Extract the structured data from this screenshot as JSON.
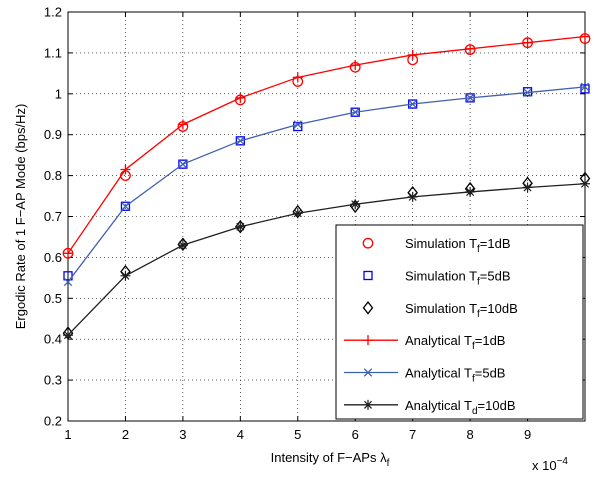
{
  "chart_data": {
    "type": "line",
    "xlabel": "Intensity of F−APs λ",
    "xlabel_sub": "f",
    "ylabel": "Ergodic Rate of 1 F−AP Mode (bps/Hz)",
    "x_multiplier_base": "x 10",
    "x_multiplier_exp": "−4",
    "xlim": [
      1,
      10
    ],
    "ylim": [
      0.2,
      1.2
    ],
    "x_ticks": [
      1,
      2,
      3,
      4,
      5,
      6,
      7,
      8,
      9
    ],
    "x_tick_labels": [
      "1",
      "2",
      "3",
      "4",
      "5",
      "6",
      "7",
      "8",
      "9"
    ],
    "y_ticks": [
      0.2,
      0.3,
      0.4,
      0.5,
      0.6,
      0.7,
      0.8,
      0.9,
      1.0,
      1.1,
      1.2
    ],
    "y_tick_labels": [
      "0.2",
      "0.3",
      "0.4",
      "0.5",
      "0.6",
      "0.7",
      "0.8",
      "0.9",
      "1",
      "1.1",
      "1.2"
    ],
    "grid": true,
    "legend_position": "bottom-right",
    "series": [
      {
        "name": "Simulation T",
        "name_sub": "f",
        "name_tail": "=1dB",
        "kind": "markers",
        "marker": "circle",
        "color": "#ff0000",
        "x": [
          1,
          2,
          3,
          4,
          5,
          6,
          7,
          8,
          9,
          10
        ],
        "y": [
          0.61,
          0.8,
          0.92,
          0.985,
          1.03,
          1.065,
          1.083,
          1.108,
          1.125,
          1.135
        ]
      },
      {
        "name": "Simulation T",
        "name_sub": "f",
        "name_tail": "=5dB",
        "kind": "markers",
        "marker": "square",
        "color": "#0000ff",
        "x": [
          1,
          2,
          3,
          4,
          5,
          6,
          7,
          8,
          9,
          10
        ],
        "y": [
          0.555,
          0.725,
          0.828,
          0.885,
          0.92,
          0.955,
          0.975,
          0.99,
          1.005,
          1.012
        ]
      },
      {
        "name": "Simulation T",
        "name_sub": "f",
        "name_tail": "=10dB",
        "kind": "markers",
        "marker": "diamond",
        "color": "#000000",
        "x": [
          1,
          2,
          3,
          4,
          5,
          6,
          7,
          8,
          9,
          10
        ],
        "y": [
          0.415,
          0.565,
          0.632,
          0.675,
          0.712,
          0.725,
          0.758,
          0.768,
          0.781,
          0.793
        ]
      },
      {
        "name": "Analytical T",
        "name_sub": "f",
        "name_tail": "=1dB",
        "kind": "line",
        "marker": "plus",
        "color": "#ff0000",
        "x": [
          1,
          2,
          3,
          4,
          5,
          6,
          7,
          8,
          9,
          10
        ],
        "y": [
          0.61,
          0.815,
          0.925,
          0.99,
          1.04,
          1.07,
          1.095,
          1.11,
          1.125,
          1.14
        ]
      },
      {
        "name": "Analytical T",
        "name_sub": "f",
        "name_tail": "=5dB",
        "kind": "line",
        "marker": "x",
        "color": "#4060b0",
        "x": [
          1,
          2,
          3,
          4,
          5,
          6,
          7,
          8,
          9,
          10
        ],
        "y": [
          0.54,
          0.725,
          0.828,
          0.885,
          0.925,
          0.955,
          0.975,
          0.99,
          1.003,
          1.017
        ]
      },
      {
        "name": "Analytical T",
        "name_sub": "d",
        "name_tail": "=10dB",
        "kind": "line",
        "marker": "star",
        "color": "#202020",
        "x": [
          1,
          2,
          3,
          4,
          5,
          6,
          7,
          8,
          9,
          10
        ],
        "y": [
          0.41,
          0.555,
          0.63,
          0.675,
          0.708,
          0.73,
          0.748,
          0.76,
          0.771,
          0.78
        ]
      }
    ]
  }
}
